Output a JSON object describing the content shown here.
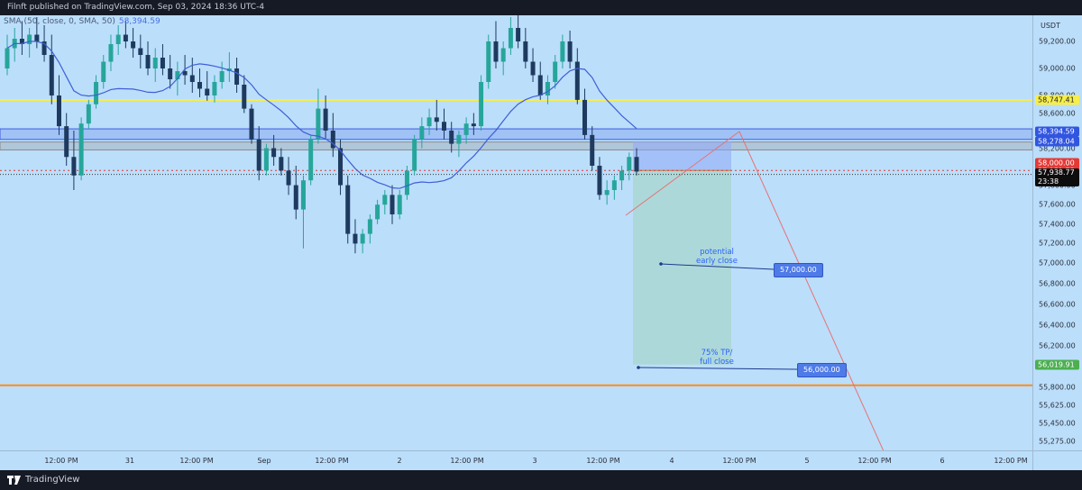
{
  "header": {
    "text": "Filnft published on TradingView.com, Sep 03, 2024 18:36 UTC-4"
  },
  "footer": {
    "brand": "TradingView"
  },
  "legend": {
    "indicator": "SMA (50, close, 0, SMA, 50)",
    "value": "58,394.59"
  },
  "price_axis": {
    "currency": "USDT",
    "ticks": [
      "59,200.00",
      "59,000.00",
      "58,800.00",
      "58,600.00",
      "58,400.00",
      "58,200.00",
      "57,800.00",
      "57,600.00",
      "57,400.00",
      "57,200.00",
      "57,000.00",
      "56,800.00",
      "56,600.00",
      "56,400.00",
      "56,200.00",
      "56,000.00",
      "55,800.00",
      "55,625.00",
      "55,450.00",
      "55,275.00"
    ],
    "labels": [
      {
        "text": "58,747.41",
        "bg": "#f6ee4b",
        "fg": "#1e222d"
      },
      {
        "text": "58,394.59",
        "bg": "#3155e0",
        "fg": "#ffffff"
      },
      {
        "text": "58,278.04",
        "bg": "#3155e0",
        "fg": "#ffffff"
      },
      {
        "text": "58,000.00",
        "bg": "#e53935",
        "fg": "#ffffff"
      },
      {
        "text": "57,951.75",
        "bg": "#e53935",
        "fg": "#ffffff"
      },
      {
        "text": "57,938.77",
        "bg": "#0d0d0d",
        "fg": "#ffffff",
        "sub": "23:38"
      },
      {
        "text": "56,019.91",
        "bg": "#4caf50",
        "fg": "#ffffff"
      }
    ]
  },
  "time_axis": {
    "ticks": [
      "12:00 PM",
      "31",
      "12:00 PM",
      "Sep",
      "12:00 PM",
      "2",
      "12:00 PM",
      "3",
      "12:00 PM",
      "4",
      "12:00 PM",
      "5",
      "12:00 PM",
      "6",
      "12:00 PM"
    ]
  },
  "annotations": {
    "note1": "potential\nearly close",
    "tag1": "57,000.00",
    "note2": "75% TP/\nfull close",
    "tag2": "56,000.00"
  },
  "chart_data": {
    "type": "candlestick",
    "symbol_currency": "USDT",
    "y_range": [
      55200,
      59400
    ],
    "x_labels": [
      "12:00 PM",
      "31",
      "12:00 PM",
      "Sep",
      "12:00 PM",
      "2",
      "12:00 PM",
      "3",
      "12:00 PM",
      "4",
      "12:00 PM",
      "5",
      "12:00 PM",
      "6",
      "12:00 PM"
    ],
    "sma_50_last": 58394.59,
    "horizontal_lines": [
      {
        "price": 58747.41,
        "color": "#f6ee4b"
      },
      {
        "price": 55820,
        "color": "#ff8c1a"
      }
    ],
    "zones": [
      {
        "from": 58300,
        "to": 58420,
        "color": "#3f5fe0"
      },
      {
        "from": 58180,
        "to": 58270,
        "color": "#9e9e9e"
      }
    ],
    "current_price": 57938.77,
    "short_position": {
      "entry": 57951.75,
      "stop": 58278.04,
      "target": 56019.91
    },
    "candles": [
      {
        "o": 59000,
        "h": 59250,
        "l": 58950,
        "c": 59150
      },
      {
        "o": 59150,
        "h": 59300,
        "l": 59050,
        "c": 59220
      },
      {
        "o": 59220,
        "h": 59350,
        "l": 59100,
        "c": 59180
      },
      {
        "o": 59180,
        "h": 59300,
        "l": 59080,
        "c": 59250
      },
      {
        "o": 59250,
        "h": 59380,
        "l": 59150,
        "c": 59200
      },
      {
        "o": 59200,
        "h": 59320,
        "l": 59050,
        "c": 59100
      },
      {
        "o": 59100,
        "h": 59250,
        "l": 58700,
        "c": 58800
      },
      {
        "o": 58800,
        "h": 58950,
        "l": 58350,
        "c": 58450
      },
      {
        "o": 58450,
        "h": 58600,
        "l": 58000,
        "c": 58100
      },
      {
        "o": 58100,
        "h": 58400,
        "l": 57750,
        "c": 57900
      },
      {
        "o": 57900,
        "h": 58550,
        "l": 57850,
        "c": 58480
      },
      {
        "o": 58480,
        "h": 58750,
        "l": 58420,
        "c": 58700
      },
      {
        "o": 58700,
        "h": 58950,
        "l": 58650,
        "c": 58900
      },
      {
        "o": 58900,
        "h": 59100,
        "l": 58850,
        "c": 59050
      },
      {
        "o": 59050,
        "h": 59250,
        "l": 58980,
        "c": 59180
      },
      {
        "o": 59180,
        "h": 59320,
        "l": 59100,
        "c": 59250
      },
      {
        "o": 59250,
        "h": 59350,
        "l": 59150,
        "c": 59200
      },
      {
        "o": 59200,
        "h": 59300,
        "l": 59080,
        "c": 59150
      },
      {
        "o": 59150,
        "h": 59250,
        "l": 59000,
        "c": 59100
      },
      {
        "o": 59100,
        "h": 59200,
        "l": 58950,
        "c": 59000
      },
      {
        "o": 59000,
        "h": 59150,
        "l": 58900,
        "c": 59080
      },
      {
        "o": 59080,
        "h": 59180,
        "l": 58950,
        "c": 59000
      },
      {
        "o": 59000,
        "h": 59100,
        "l": 58850,
        "c": 58920
      },
      {
        "o": 58920,
        "h": 59050,
        "l": 58800,
        "c": 58980
      },
      {
        "o": 58980,
        "h": 59100,
        "l": 58880,
        "c": 58950
      },
      {
        "o": 58950,
        "h": 59080,
        "l": 58820,
        "c": 58900
      },
      {
        "o": 58900,
        "h": 59000,
        "l": 58780,
        "c": 58850
      },
      {
        "o": 58850,
        "h": 58980,
        "l": 58740,
        "c": 58800
      },
      {
        "o": 58800,
        "h": 58950,
        "l": 58720,
        "c": 58900
      },
      {
        "o": 58900,
        "h": 59050,
        "l": 58850,
        "c": 58980
      },
      {
        "o": 58980,
        "h": 59120,
        "l": 58900,
        "c": 59000
      },
      {
        "o": 59000,
        "h": 59080,
        "l": 58820,
        "c": 58880
      },
      {
        "o": 58880,
        "h": 58950,
        "l": 58600,
        "c": 58650
      },
      {
        "o": 58650,
        "h": 58700,
        "l": 58250,
        "c": 58300
      },
      {
        "o": 58300,
        "h": 58450,
        "l": 57850,
        "c": 57950
      },
      {
        "o": 57950,
        "h": 58250,
        "l": 57900,
        "c": 58200
      },
      {
        "o": 58200,
        "h": 58350,
        "l": 58000,
        "c": 58100
      },
      {
        "o": 58100,
        "h": 58200,
        "l": 57900,
        "c": 57950
      },
      {
        "o": 57950,
        "h": 58100,
        "l": 57700,
        "c": 57800
      },
      {
        "o": 57800,
        "h": 58000,
        "l": 57450,
        "c": 57550
      },
      {
        "o": 57550,
        "h": 57900,
        "l": 57150,
        "c": 57850
      },
      {
        "o": 57850,
        "h": 58350,
        "l": 57800,
        "c": 58300
      },
      {
        "o": 58300,
        "h": 58850,
        "l": 58250,
        "c": 58650
      },
      {
        "o": 58650,
        "h": 58800,
        "l": 58300,
        "c": 58400
      },
      {
        "o": 58400,
        "h": 58600,
        "l": 58100,
        "c": 58200
      },
      {
        "o": 58200,
        "h": 58300,
        "l": 57700,
        "c": 57800
      },
      {
        "o": 57800,
        "h": 57900,
        "l": 57200,
        "c": 57300
      },
      {
        "o": 57300,
        "h": 57450,
        "l": 57100,
        "c": 57200
      },
      {
        "o": 57200,
        "h": 57350,
        "l": 57100,
        "c": 57300
      },
      {
        "o": 57300,
        "h": 57500,
        "l": 57200,
        "c": 57450
      },
      {
        "o": 57450,
        "h": 57650,
        "l": 57400,
        "c": 57600
      },
      {
        "o": 57600,
        "h": 57750,
        "l": 57500,
        "c": 57700
      },
      {
        "o": 57700,
        "h": 57800,
        "l": 57400,
        "c": 57500
      },
      {
        "o": 57500,
        "h": 57750,
        "l": 57450,
        "c": 57700
      },
      {
        "o": 57700,
        "h": 58000,
        "l": 57650,
        "c": 57950
      },
      {
        "o": 57950,
        "h": 58350,
        "l": 57900,
        "c": 58300
      },
      {
        "o": 58300,
        "h": 58550,
        "l": 58200,
        "c": 58450
      },
      {
        "o": 58450,
        "h": 58650,
        "l": 58350,
        "c": 58550
      },
      {
        "o": 58550,
        "h": 58750,
        "l": 58400,
        "c": 58500
      },
      {
        "o": 58500,
        "h": 58650,
        "l": 58300,
        "c": 58400
      },
      {
        "o": 58400,
        "h": 58500,
        "l": 58150,
        "c": 58250
      },
      {
        "o": 58250,
        "h": 58400,
        "l": 58100,
        "c": 58350
      },
      {
        "o": 58350,
        "h": 58550,
        "l": 58250,
        "c": 58480
      },
      {
        "o": 58480,
        "h": 58600,
        "l": 58350,
        "c": 58450
      },
      {
        "o": 58450,
        "h": 58950,
        "l": 58400,
        "c": 58900
      },
      {
        "o": 58900,
        "h": 59250,
        "l": 58850,
        "c": 59200
      },
      {
        "o": 59200,
        "h": 59350,
        "l": 59000,
        "c": 59050
      },
      {
        "o": 59050,
        "h": 59200,
        "l": 58950,
        "c": 59150
      },
      {
        "o": 59150,
        "h": 59380,
        "l": 59100,
        "c": 59300
      },
      {
        "o": 59300,
        "h": 59400,
        "l": 59150,
        "c": 59200
      },
      {
        "o": 59200,
        "h": 59300,
        "l": 59000,
        "c": 59050
      },
      {
        "o": 59050,
        "h": 59150,
        "l": 58900,
        "c": 58950
      },
      {
        "o": 58950,
        "h": 59050,
        "l": 58750,
        "c": 58800
      },
      {
        "o": 58800,
        "h": 58950,
        "l": 58700,
        "c": 58900
      },
      {
        "o": 58900,
        "h": 59100,
        "l": 58850,
        "c": 59050
      },
      {
        "o": 59050,
        "h": 59250,
        "l": 59000,
        "c": 59200
      },
      {
        "o": 59200,
        "h": 59280,
        "l": 59000,
        "c": 59050
      },
      {
        "o": 59050,
        "h": 59150,
        "l": 58700,
        "c": 58750
      },
      {
        "o": 58750,
        "h": 58850,
        "l": 58300,
        "c": 58350
      },
      {
        "o": 58350,
        "h": 58450,
        "l": 57950,
        "c": 58000
      },
      {
        "o": 58000,
        "h": 58100,
        "l": 57650,
        "c": 57700
      },
      {
        "o": 57700,
        "h": 57850,
        "l": 57600,
        "c": 57750
      },
      {
        "o": 57750,
        "h": 57900,
        "l": 57650,
        "c": 57850
      },
      {
        "o": 57850,
        "h": 58000,
        "l": 57750,
        "c": 57950
      },
      {
        "o": 57950,
        "h": 58150,
        "l": 57850,
        "c": 58100
      },
      {
        "o": 58100,
        "h": 58200,
        "l": 57900,
        "c": 57940
      }
    ]
  }
}
